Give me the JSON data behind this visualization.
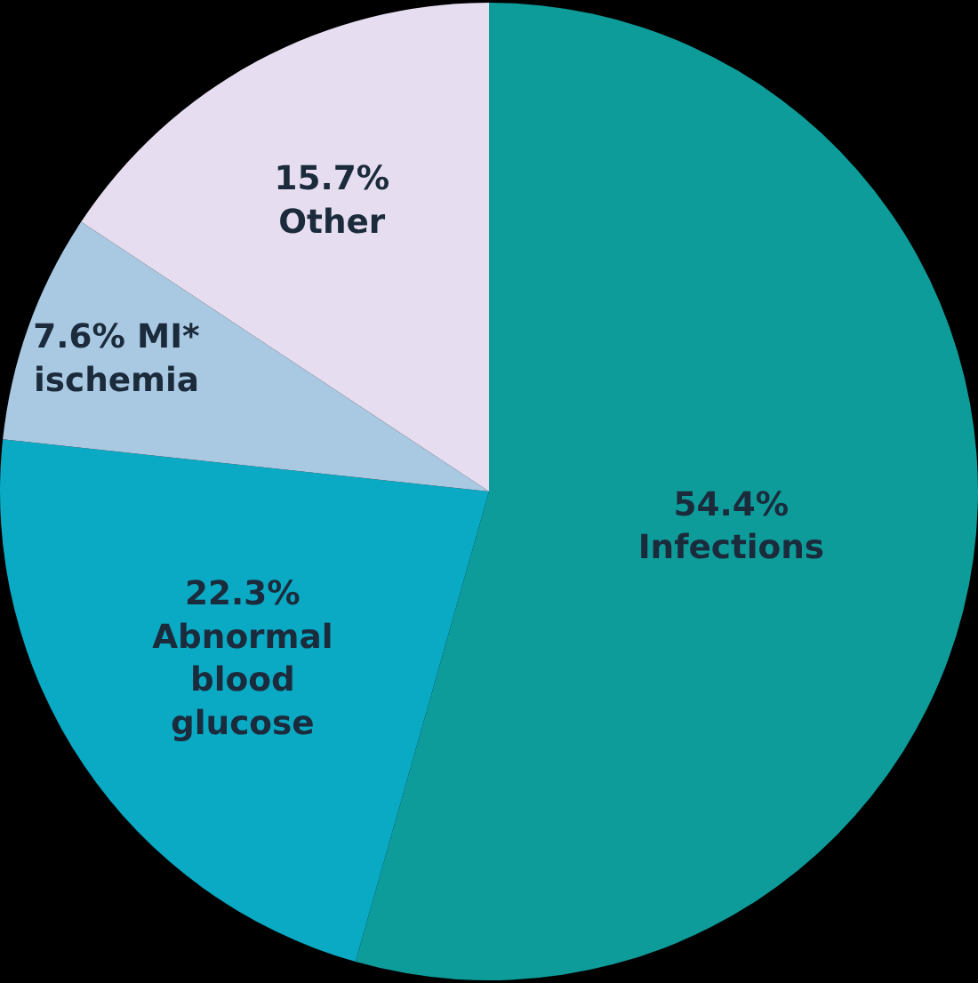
{
  "chart_data": {
    "type": "pie",
    "categories": [
      "Infections",
      "Abnormal blood glucose",
      "MI* ischemia",
      "Other"
    ],
    "values": [
      54.4,
      22.3,
      7.6,
      15.7
    ],
    "colors": [
      "#0e9c9a",
      "#0aa9c4",
      "#a9c8e2",
      "#e6def0"
    ],
    "value_labels": [
      "54.4%",
      "22.3%",
      "7.6%",
      "15.7%"
    ],
    "legend": false
  }
}
